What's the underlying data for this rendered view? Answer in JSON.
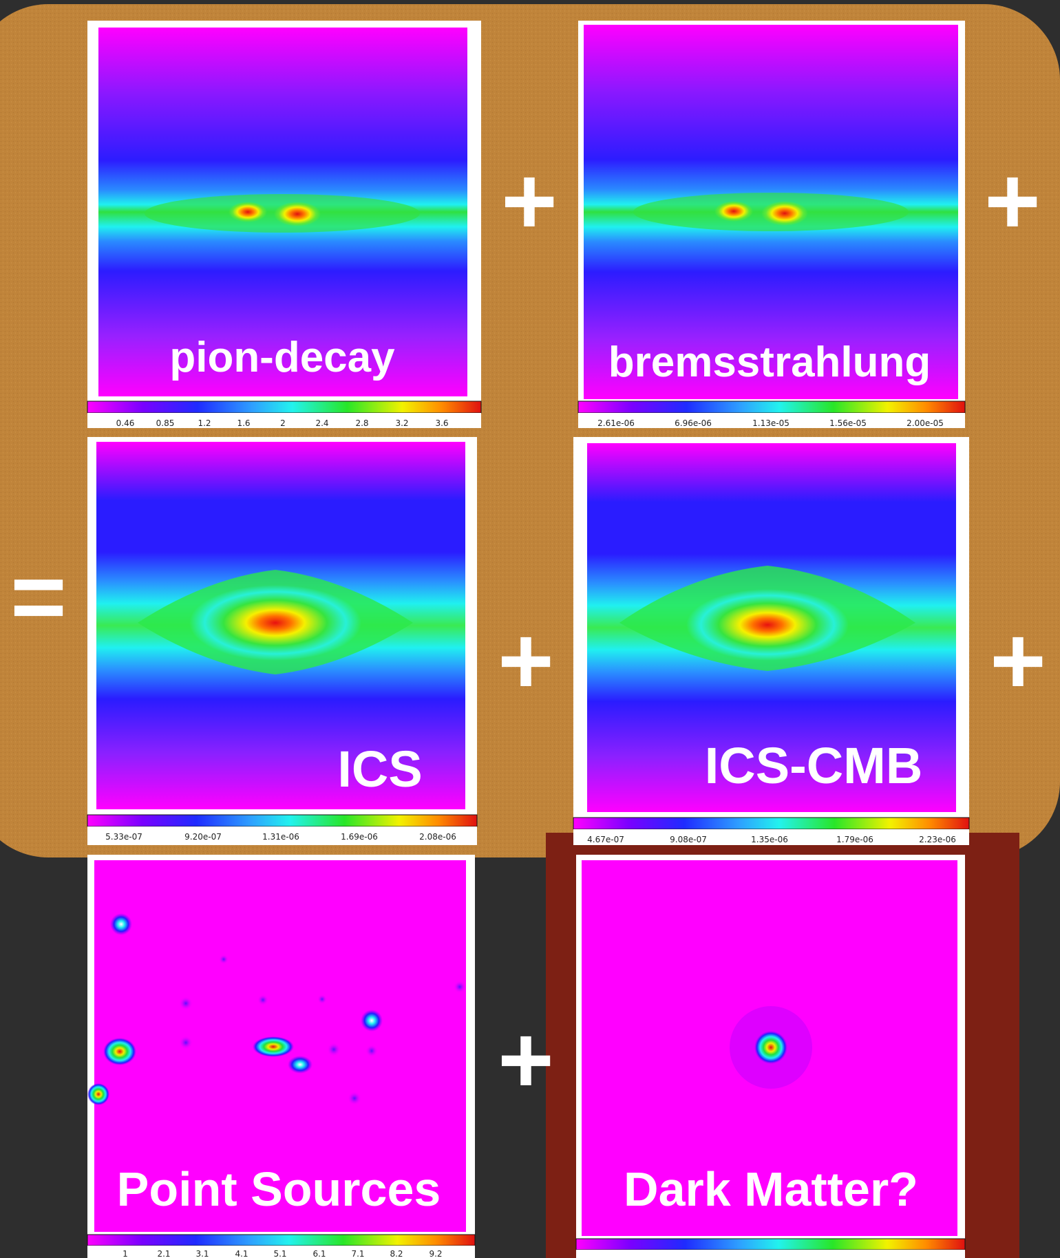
{
  "colors": {
    "background": "#2e2e2e",
    "brown_board": "#c0843a",
    "dark_red_panel": "#7d2014"
  },
  "panels": [
    {
      "label": "pion-decay",
      "ticks": [
        "0.46",
        "0.85",
        "1.2",
        "1.6",
        "2",
        "2.4",
        "2.8",
        "3.2",
        "3.6"
      ]
    },
    {
      "label": "bremsstrahlung",
      "ticks": [
        "2.61e-06",
        "6.96e-06",
        "1.13e-05",
        "1.56e-05",
        "2.00e-05"
      ]
    },
    {
      "label": "ICS",
      "ticks": [
        "5.33e-07",
        "9.20e-07",
        "1.31e-06",
        "1.69e-06",
        "2.08e-06"
      ]
    },
    {
      "label": "ICS-CMB",
      "ticks": [
        "4.67e-07",
        "9.08e-07",
        "1.35e-06",
        "1.79e-06",
        "2.23e-06"
      ]
    },
    {
      "label": "Point Sources",
      "ticks": [
        "1",
        "2.1",
        "3.1",
        "4.1",
        "5.1",
        "6.1",
        "7.1",
        "8.2",
        "9.2"
      ]
    },
    {
      "label": "Dark Matter?",
      "ticks": []
    }
  ],
  "operators": {
    "plus": "+",
    "equals": "="
  }
}
